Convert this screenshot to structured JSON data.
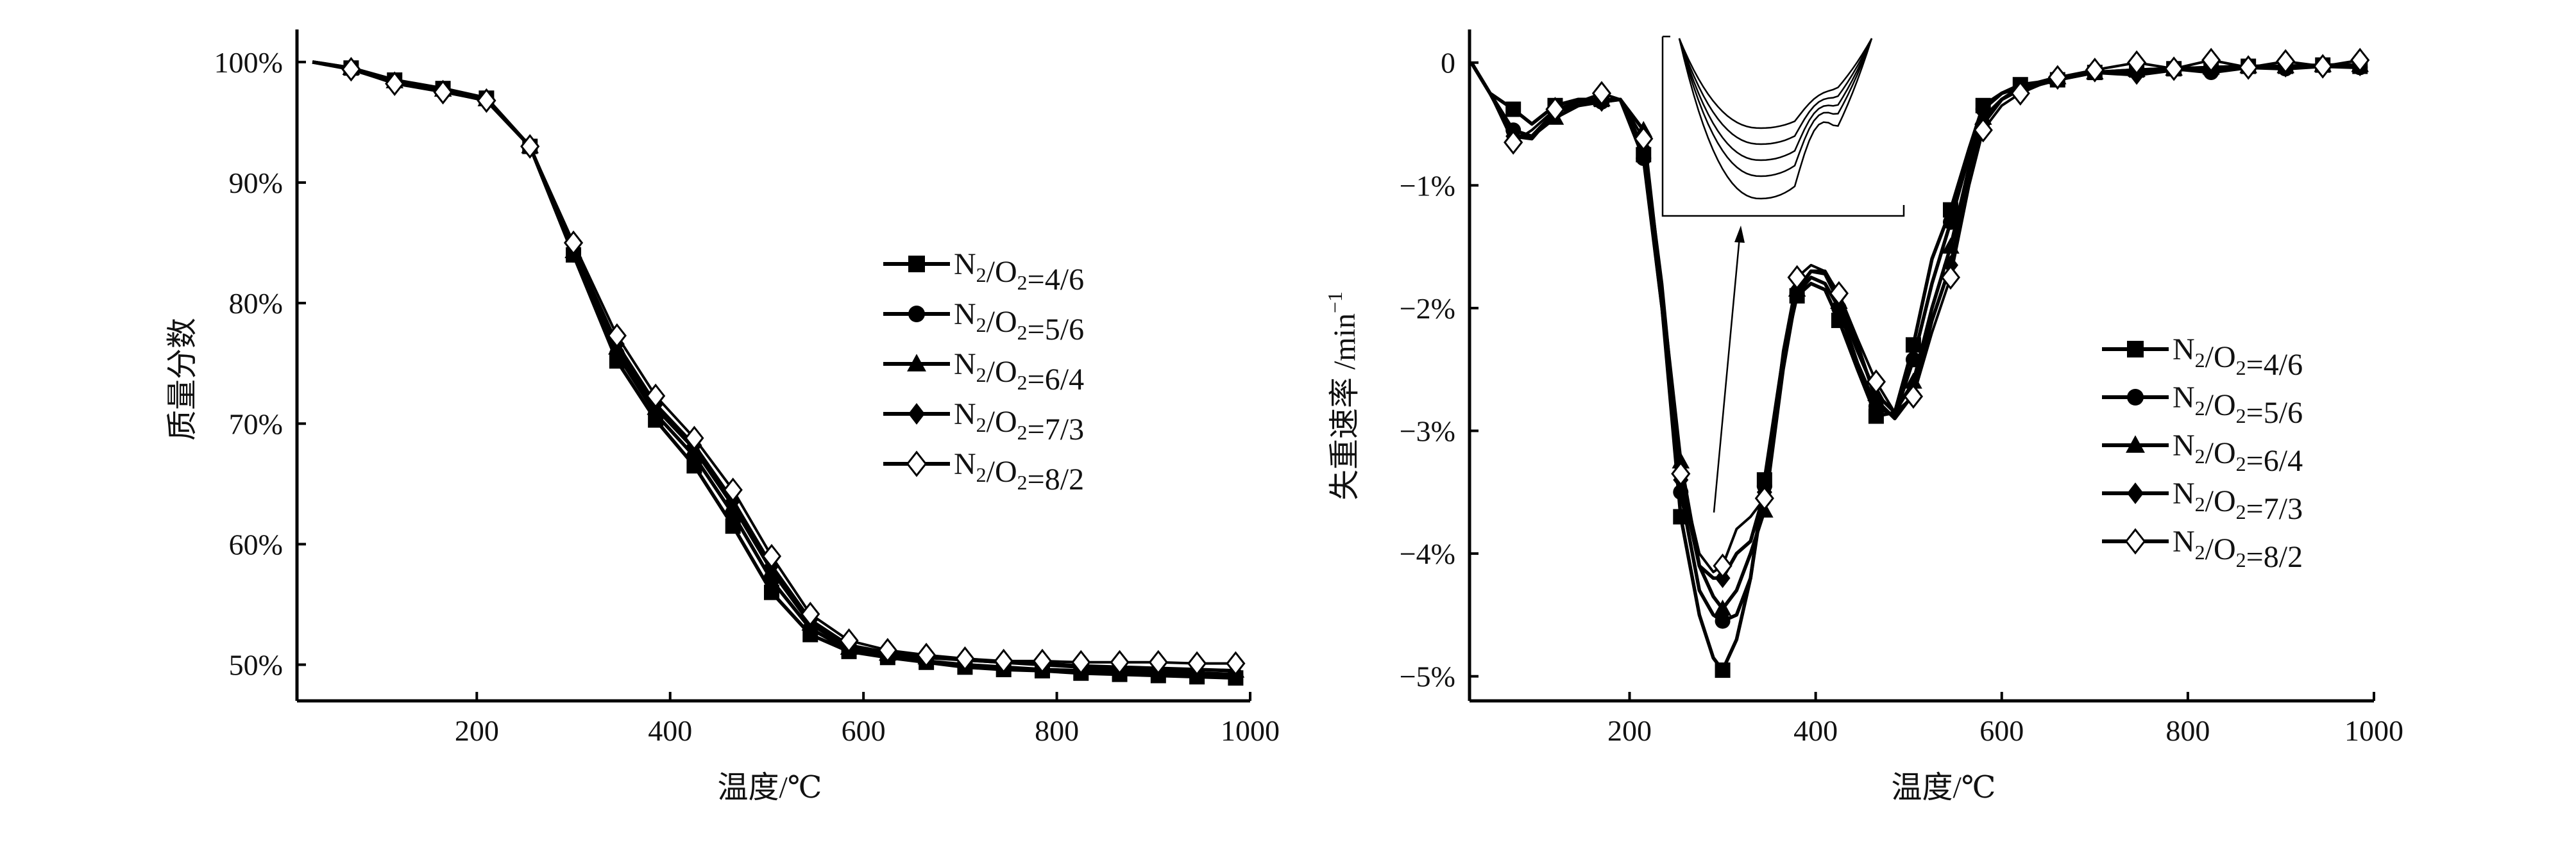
{
  "chart_data": [
    {
      "type": "line",
      "title": "",
      "xlabel": "温度/℃",
      "ylabel": "质量分数",
      "xlim": [
        14,
        1000
      ],
      "ylim": [
        47,
        102.7
      ],
      "xticks": [
        200,
        400,
        600,
        800,
        1000
      ],
      "yticks": [
        50,
        60,
        70,
        80,
        90,
        100
      ],
      "ytick_labels": [
        "50%",
        "60%",
        "70%",
        "80%",
        "90%",
        "100%"
      ],
      "xtick_labels": [
        "200",
        "400",
        "600",
        "800",
        "1000"
      ],
      "legend_position": "right",
      "grid": false,
      "x": [
        30,
        70,
        115,
        165,
        210,
        255,
        300,
        345,
        385,
        425,
        465,
        505,
        545,
        585,
        625,
        665,
        705,
        745,
        785,
        825,
        865,
        905,
        945,
        985
      ],
      "series": [
        {
          "name": "N2/O2=4/6",
          "marker": "square",
          "values": [
            100,
            99.5,
            98.5,
            97.8,
            97.0,
            93.0,
            84.0,
            75.2,
            70.3,
            66.5,
            61.5,
            56.0,
            52.5,
            51.1,
            50.6,
            50.2,
            49.8,
            49.6,
            49.5,
            49.3,
            49.2,
            49.1,
            49.0,
            48.9
          ]
        },
        {
          "name": "N2/O2=5/6",
          "marker": "circle",
          "values": [
            100,
            99.5,
            98.4,
            97.7,
            96.9,
            93.0,
            84.0,
            75.8,
            70.8,
            67.3,
            62.5,
            57.0,
            53.0,
            51.2,
            50.7,
            50.3,
            50.0,
            49.8,
            49.6,
            49.5,
            49.4,
            49.3,
            49.2,
            49.1
          ]
        },
        {
          "name": "N2/O2=6/4",
          "marker": "triangle",
          "values": [
            100,
            99.5,
            98.4,
            97.7,
            96.9,
            93.0,
            84.3,
            76.3,
            71.3,
            67.9,
            63.2,
            57.8,
            53.4,
            51.4,
            50.9,
            50.6,
            50.4,
            50.2,
            50.1,
            49.9,
            49.8,
            49.7,
            49.6,
            49.5
          ]
        },
        {
          "name": "N2/O2=7/3",
          "marker": "diamond",
          "values": [
            100,
            99.4,
            98.3,
            97.6,
            96.8,
            93.0,
            84.5,
            76.6,
            71.6,
            68.2,
            63.6,
            58.2,
            53.7,
            51.6,
            51.0,
            50.7,
            50.4,
            50.2,
            50.0,
            49.8,
            49.6,
            49.5,
            49.3,
            49.2
          ]
        },
        {
          "name": "N2/O2=8/2",
          "marker": "open-diamond",
          "values": [
            100,
            99.4,
            98.2,
            97.5,
            96.8,
            93.0,
            85.0,
            77.3,
            72.3,
            68.8,
            64.5,
            59.0,
            54.2,
            52.0,
            51.2,
            50.8,
            50.5,
            50.3,
            50.3,
            50.2,
            50.2,
            50.2,
            50.1,
            50.1
          ]
        }
      ]
    },
    {
      "type": "line",
      "title": "",
      "xlabel": "温度/℃",
      "ylabel": "失重速率 /min",
      "ylabel_superscript": "−1",
      "xlim": [
        28,
        1000
      ],
      "ylim": [
        -5.2,
        0.27
      ],
      "xticks": [
        200,
        400,
        600,
        800,
        1000
      ],
      "xtick_labels": [
        "200",
        "400",
        "600",
        "800",
        "1000"
      ],
      "yticks": [
        0,
        -1,
        -2,
        -3,
        -4,
        -5
      ],
      "ytick_labels": [
        "0",
        "−1%",
        "−2%",
        "−3%",
        "−4%",
        "−5%"
      ],
      "legend_position": "right",
      "grid": false,
      "inset": "zoom of minimum region near 300 ℃",
      "x": [
        30,
        50,
        75,
        95,
        120,
        145,
        170,
        190,
        215,
        235,
        255,
        275,
        290,
        300,
        315,
        330,
        345,
        365,
        380,
        395,
        410,
        425,
        445,
        465,
        485,
        505,
        525,
        545,
        565,
        580,
        600,
        620,
        660,
        700,
        745,
        785,
        825,
        865,
        905,
        945,
        985
      ],
      "marker_x": [
        75,
        120,
        170,
        215,
        255,
        300,
        345,
        380,
        425,
        465,
        505,
        545,
        580,
        620,
        660,
        700,
        745,
        785,
        825,
        865,
        905,
        945,
        985
      ],
      "series": [
        {
          "name": "N2/O2=4/6",
          "marker": "square",
          "values": [
            0,
            -0.25,
            -0.38,
            -0.5,
            -0.35,
            -0.3,
            -0.3,
            -0.3,
            -0.75,
            -2.0,
            -3.7,
            -4.5,
            -4.85,
            -4.95,
            -4.7,
            -4.2,
            -3.4,
            -2.4,
            -1.9,
            -1.8,
            -1.85,
            -2.1,
            -2.5,
            -2.88,
            -2.85,
            -2.3,
            -1.6,
            -1.2,
            -0.7,
            -0.35,
            -0.25,
            -0.18,
            -0.14,
            -0.08,
            -0.06,
            -0.05,
            -0.04,
            -0.03,
            -0.03,
            -0.02,
            -0.03
          ]
        },
        {
          "name": "N2/O2=5/6",
          "marker": "circle",
          "values": [
            0,
            -0.25,
            -0.55,
            -0.6,
            -0.4,
            -0.32,
            -0.32,
            -0.3,
            -0.78,
            -2.0,
            -3.5,
            -4.3,
            -4.5,
            -4.55,
            -4.5,
            -4.2,
            -3.45,
            -2.4,
            -1.88,
            -1.75,
            -1.8,
            -2.0,
            -2.45,
            -2.8,
            -2.88,
            -2.42,
            -1.8,
            -1.3,
            -0.75,
            -0.38,
            -0.25,
            -0.2,
            -0.12,
            -0.08,
            -0.08,
            -0.05,
            -0.08,
            -0.04,
            -0.05,
            -0.03,
            -0.04
          ]
        },
        {
          "name": "N2/O2=6/4",
          "marker": "triangle",
          "values": [
            0,
            -0.25,
            -0.6,
            -0.6,
            -0.45,
            -0.35,
            -0.3,
            -0.3,
            -0.55,
            -1.9,
            -3.25,
            -4.1,
            -4.35,
            -4.45,
            -4.3,
            -4.0,
            -3.65,
            -2.5,
            -1.85,
            -1.7,
            -1.72,
            -1.95,
            -2.35,
            -2.7,
            -2.85,
            -2.6,
            -2.0,
            -1.5,
            -0.85,
            -0.45,
            -0.3,
            -0.2,
            -0.12,
            -0.08,
            -0.06,
            -0.05,
            -0.04,
            -0.03,
            -0.03,
            -0.02,
            -0.02
          ]
        },
        {
          "name": "N2/O2=7/3",
          "marker": "diamond",
          "values": [
            0,
            -0.25,
            -0.6,
            -0.62,
            -0.4,
            -0.35,
            -0.32,
            -0.3,
            -0.7,
            -1.9,
            -3.4,
            -4.1,
            -4.2,
            -4.2,
            -4.0,
            -3.9,
            -3.5,
            -2.4,
            -1.85,
            -1.7,
            -1.7,
            -1.9,
            -2.3,
            -2.75,
            -2.9,
            -2.7,
            -2.1,
            -1.65,
            -0.9,
            -0.5,
            -0.3,
            -0.22,
            -0.14,
            -0.08,
            -0.1,
            -0.06,
            -0.05,
            -0.04,
            -0.04,
            -0.03,
            -0.03
          ]
        },
        {
          "name": "N2/O2=8/2",
          "marker": "open-diamond",
          "values": [
            0,
            -0.25,
            -0.65,
            -0.55,
            -0.38,
            -0.32,
            -0.25,
            -0.3,
            -0.62,
            -1.8,
            -3.35,
            -4.0,
            -4.15,
            -4.1,
            -3.8,
            -3.7,
            -3.55,
            -2.35,
            -1.75,
            -1.65,
            -1.7,
            -1.88,
            -2.25,
            -2.6,
            -2.85,
            -2.72,
            -2.2,
            -1.75,
            -1.0,
            -0.55,
            -0.35,
            -0.25,
            -0.12,
            -0.06,
            0.0,
            -0.05,
            0.02,
            -0.04,
            0.01,
            -0.03,
            0.02
          ]
        }
      ]
    }
  ]
}
